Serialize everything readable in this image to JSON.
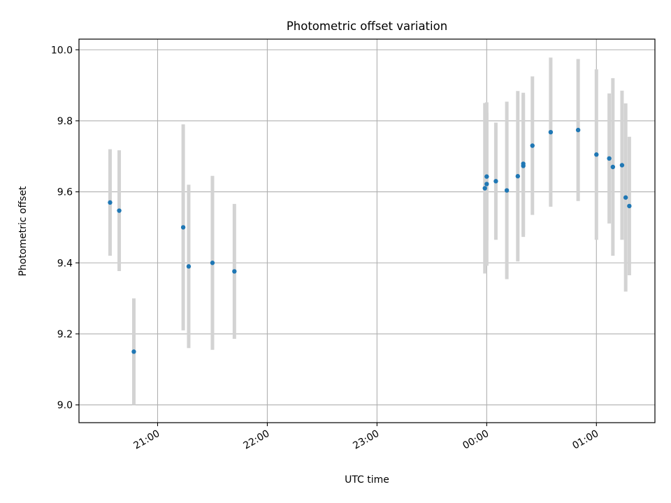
{
  "chart_data": {
    "type": "scatter",
    "title": "Photometric offset variation",
    "xlabel": "UTC time",
    "ylabel": "Photometric offset",
    "x_tick_labels": [
      "21:00",
      "22:00",
      "23:00",
      "00:00",
      "01:00"
    ],
    "y_ticks": [
      9.0,
      9.2,
      9.4,
      9.6,
      9.8,
      10.0
    ],
    "y_tick_labels": [
      "9.0",
      "9.2",
      "9.4",
      "9.6",
      "9.8",
      "10.0"
    ],
    "ylim": [
      8.95,
      10.03
    ],
    "xlim": [
      "20:17",
      "01:32"
    ],
    "grid": true,
    "point_color": "#1f77b4",
    "errorbar_color": "#d3d3d3",
    "series": [
      {
        "points": [
          {
            "x": "20:34",
            "y": 9.57,
            "yerr": 0.15
          },
          {
            "x": "20:39",
            "y": 9.547,
            "yerr": 0.17
          },
          {
            "x": "20:47",
            "y": 9.15,
            "yerr": 0.15
          },
          {
            "x": "21:14",
            "y": 9.5,
            "yerr": 0.29
          },
          {
            "x": "21:17",
            "y": 9.39,
            "yerr": 0.23
          },
          {
            "x": "21:30",
            "y": 9.4,
            "yerr": 0.245
          },
          {
            "x": "21:42",
            "y": 9.376,
            "yerr": 0.19
          },
          {
            "x": "23:59",
            "y": 9.61,
            "yerr": 0.24
          },
          {
            "x": "00:00",
            "y": 9.622,
            "yerr": 0.23
          },
          {
            "x": "00:00",
            "y": 9.643,
            "yerr": 0.18
          },
          {
            "x": "00:05",
            "y": 9.63,
            "yerr": 0.165
          },
          {
            "x": "00:11",
            "y": 9.604,
            "yerr": 0.25
          },
          {
            "x": "00:17",
            "y": 9.644,
            "yerr": 0.24
          },
          {
            "x": "00:20",
            "y": 9.673,
            "yerr": 0.2
          },
          {
            "x": "00:20",
            "y": 9.679,
            "yerr": 0.2
          },
          {
            "x": "00:25",
            "y": 9.73,
            "yerr": 0.195
          },
          {
            "x": "00:35",
            "y": 9.768,
            "yerr": 0.21
          },
          {
            "x": "00:50",
            "y": 9.774,
            "yerr": 0.2
          },
          {
            "x": "01:00",
            "y": 9.705,
            "yerr": 0.24
          },
          {
            "x": "01:07",
            "y": 9.694,
            "yerr": 0.183
          },
          {
            "x": "01:09",
            "y": 9.67,
            "yerr": 0.25
          },
          {
            "x": "01:14",
            "y": 9.675,
            "yerr": 0.21
          },
          {
            "x": "01:16",
            "y": 9.584,
            "yerr": 0.265
          },
          {
            "x": "01:18",
            "y": 9.56,
            "yerr": 0.195
          }
        ]
      }
    ]
  }
}
